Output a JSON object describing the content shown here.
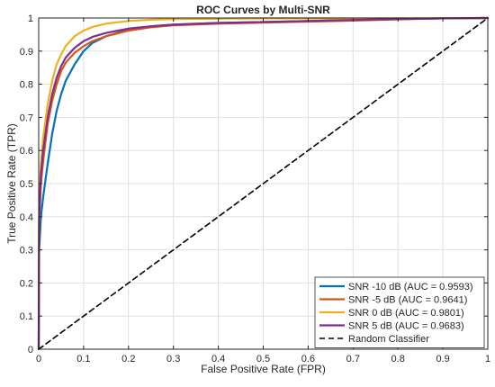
{
  "chart_data": {
    "type": "line",
    "title": "ROC Curves by Multi-SNR",
    "xlabel": "False Positive Rate (FPR)",
    "ylabel": "True Positive Rate (TPR)",
    "xlim": [
      0,
      1
    ],
    "ylim": [
      0,
      1
    ],
    "xticks": [
      "0",
      "0.1",
      "0.2",
      "0.3",
      "0.4",
      "0.5",
      "0.6",
      "0.7",
      "0.8",
      "0.9",
      "1"
    ],
    "yticks": [
      "0",
      "0.1",
      "0.2",
      "0.3",
      "0.4",
      "0.5",
      "0.6",
      "0.7",
      "0.8",
      "0.9",
      "1"
    ],
    "grid": true,
    "legend_position": "bottom-right",
    "series": [
      {
        "name": "SNR -10 dB (AUC = 0.9593)",
        "color": "#0072BD",
        "line_style": "solid",
        "points": [
          [
            0,
            0
          ],
          [
            0.001,
            0.3
          ],
          [
            0.005,
            0.4
          ],
          [
            0.01,
            0.46
          ],
          [
            0.02,
            0.56
          ],
          [
            0.03,
            0.65
          ],
          [
            0.04,
            0.72
          ],
          [
            0.05,
            0.77
          ],
          [
            0.06,
            0.81
          ],
          [
            0.08,
            0.86
          ],
          [
            0.1,
            0.9
          ],
          [
            0.12,
            0.925
          ],
          [
            0.15,
            0.945
          ],
          [
            0.2,
            0.965
          ],
          [
            0.25,
            0.975
          ],
          [
            0.3,
            0.98
          ],
          [
            0.4,
            0.985
          ],
          [
            0.5,
            0.988
          ],
          [
            0.6,
            0.991
          ],
          [
            0.7,
            0.994
          ],
          [
            0.8,
            0.997
          ],
          [
            0.9,
            0.999
          ],
          [
            1,
            1
          ]
        ]
      },
      {
        "name": "SNR -5 dB (AUC = 0.9641)",
        "color": "#D95319",
        "line_style": "solid",
        "points": [
          [
            0,
            0
          ],
          [
            0.001,
            0.38
          ],
          [
            0.005,
            0.5
          ],
          [
            0.01,
            0.57
          ],
          [
            0.02,
            0.68
          ],
          [
            0.03,
            0.75
          ],
          [
            0.04,
            0.8
          ],
          [
            0.05,
            0.84
          ],
          [
            0.06,
            0.865
          ],
          [
            0.08,
            0.895
          ],
          [
            0.1,
            0.915
          ],
          [
            0.12,
            0.93
          ],
          [
            0.15,
            0.945
          ],
          [
            0.2,
            0.962
          ],
          [
            0.25,
            0.972
          ],
          [
            0.3,
            0.978
          ],
          [
            0.4,
            0.983
          ],
          [
            0.5,
            0.986
          ],
          [
            0.6,
            0.989
          ],
          [
            0.7,
            0.992
          ],
          [
            0.8,
            0.996
          ],
          [
            0.9,
            0.999
          ],
          [
            1,
            1
          ]
        ]
      },
      {
        "name": "SNR 0 dB (AUC = 0.9801)",
        "color": "#EDB120",
        "line_style": "solid",
        "points": [
          [
            0,
            0
          ],
          [
            0.001,
            0.42
          ],
          [
            0.005,
            0.56
          ],
          [
            0.01,
            0.64
          ],
          [
            0.02,
            0.74
          ],
          [
            0.03,
            0.81
          ],
          [
            0.04,
            0.86
          ],
          [
            0.05,
            0.89
          ],
          [
            0.06,
            0.915
          ],
          [
            0.08,
            0.945
          ],
          [
            0.1,
            0.962
          ],
          [
            0.12,
            0.973
          ],
          [
            0.15,
            0.983
          ],
          [
            0.2,
            0.991
          ],
          [
            0.25,
            0.995
          ],
          [
            0.3,
            0.997
          ],
          [
            0.4,
            0.998
          ],
          [
            0.5,
            0.999
          ],
          [
            0.7,
            0.999
          ],
          [
            1,
            1
          ]
        ]
      },
      {
        "name": "SNR 5 dB (AUC = 0.9683)",
        "color": "#7E2F8E",
        "line_style": "solid",
        "points": [
          [
            0,
            0
          ],
          [
            0.001,
            0.4
          ],
          [
            0.005,
            0.53
          ],
          [
            0.01,
            0.6
          ],
          [
            0.02,
            0.7
          ],
          [
            0.03,
            0.77
          ],
          [
            0.04,
            0.82
          ],
          [
            0.05,
            0.855
          ],
          [
            0.06,
            0.88
          ],
          [
            0.08,
            0.91
          ],
          [
            0.1,
            0.93
          ],
          [
            0.12,
            0.943
          ],
          [
            0.15,
            0.955
          ],
          [
            0.2,
            0.968
          ],
          [
            0.25,
            0.975
          ],
          [
            0.3,
            0.98
          ],
          [
            0.4,
            0.985
          ],
          [
            0.5,
            0.988
          ],
          [
            0.6,
            0.991
          ],
          [
            0.7,
            0.994
          ],
          [
            0.8,
            0.997
          ],
          [
            0.9,
            0.999
          ],
          [
            1,
            1
          ]
        ]
      },
      {
        "name": "Random Classifier",
        "color": "#000000",
        "line_style": "dashed",
        "points": [
          [
            0,
            0
          ],
          [
            1,
            1
          ]
        ]
      }
    ]
  }
}
